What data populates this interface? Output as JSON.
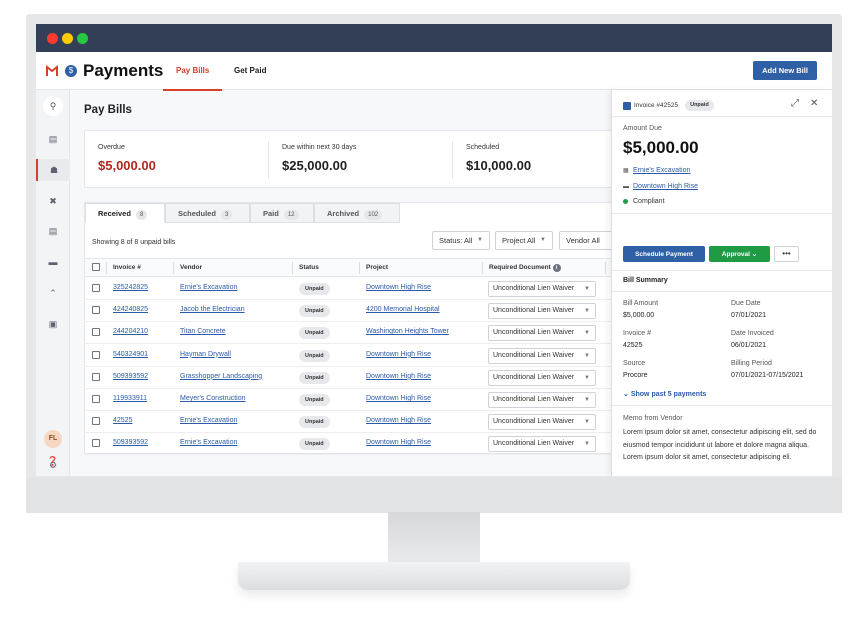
{
  "header": {
    "title": "Payments",
    "tabs": [
      "Pay Bills",
      "Get Paid"
    ],
    "add_button": "Add New Bill"
  },
  "sidebar": {
    "avatar_initials": "FL",
    "icons": [
      "search-icon",
      "dashboard-icon",
      "bank-icon",
      "tools-icon",
      "document-icon",
      "folder-icon",
      "chevron-up-icon",
      "inbox-icon",
      "gear-icon",
      "help-icon"
    ]
  },
  "page": {
    "title": "Pay Bills"
  },
  "summary": [
    {
      "label": "Overdue",
      "value": "$5,000.00"
    },
    {
      "label": "Due within next 30 days",
      "value": "$25,000.00"
    },
    {
      "label": "Scheduled",
      "value": "$10,000.00"
    }
  ],
  "tabs": [
    {
      "label": "Received",
      "count": "8"
    },
    {
      "label": "Scheduled",
      "count": "3"
    },
    {
      "label": "Paid",
      "count": "12"
    },
    {
      "label": "Archived",
      "count": "102"
    }
  ],
  "showing": "Showing 8 of 8 unpaid bills",
  "filters": [
    "Status: All",
    "Project All",
    "Vendor All"
  ],
  "columns": [
    "Invoice #",
    "Vendor",
    "Status",
    "Project",
    "Required Document"
  ],
  "rows": [
    {
      "invoice": "325242825",
      "vendor": "Ernie's Excavation",
      "status": "Unpaid",
      "project": "Downtown High Rise",
      "doc": "Unconditional Lien Waiver"
    },
    {
      "invoice": "424240825",
      "vendor": "Jacob the Electrician",
      "status": "Unpaid",
      "project": "4200 Memorial Hospital",
      "doc": "Unconditional Lien Waiver"
    },
    {
      "invoice": "244204210",
      "vendor": "Titan Concrete",
      "status": "Unpaid",
      "project": "Washington Heights Tower",
      "doc": "Unconditional Lien Waiver"
    },
    {
      "invoice": "540324901",
      "vendor": "Hayman Drywall",
      "status": "Unpaid",
      "project": "Downtown High Rise",
      "doc": "Unconditional Lien Waiver"
    },
    {
      "invoice": "509393592",
      "vendor": "Grasshopper Landscaping",
      "status": "Unpaid",
      "project": "Downtown High Rise",
      "doc": "Unconditional Lien Waiver"
    },
    {
      "invoice": "119933911",
      "vendor": "Meyer's Construction",
      "status": "Unpaid",
      "project": "Downtown High Rise",
      "doc": "Unconditional Lien Waiver"
    },
    {
      "invoice": "42525",
      "vendor": "Ernie's Excavation",
      "status": "Unpaid",
      "project": "Downtown High Rise",
      "doc": "Unconditional Lien Waiver"
    },
    {
      "invoice": "509393592",
      "vendor": "Ernie's Excavation",
      "status": "Unpaid",
      "project": "Downtown High Rise",
      "doc": "Unconditional Lien Waiver"
    }
  ],
  "panel": {
    "invoice_label": "Invoice #42525",
    "status": "Unpaid",
    "amount_label": "Amount Due",
    "amount": "$5,000.00",
    "vendor": "Ernie's Excavation",
    "project": "Downtown High Rise",
    "compliance": "Compliant",
    "schedule_button": "Schedule Payment",
    "approval_button": "Approval",
    "more_button": "•••",
    "summary_title": "Bill Summary",
    "fields": [
      {
        "label": "Bill Amount",
        "value": "$5,000.00"
      },
      {
        "label": "Due Date",
        "value": "07/01/2021"
      },
      {
        "label": "Invoice #",
        "value": "42525"
      },
      {
        "label": "Date Invoiced",
        "value": "06/01/2021"
      },
      {
        "label": "Source",
        "value": "Procore"
      },
      {
        "label": "Billing Period",
        "value": "07/01/2021-07/15/2021"
      }
    ],
    "show_past": "Show past 5 payments",
    "memo_label": "Memo from Vendor",
    "memo": "Lorem ipsum dolor sit amet, consectetur adipiscing elit, sed do eiusmod tempor incididunt ut labore et dolore magna aliqua. Lorem ipsum dolor sit amet, consectetur adipiscing eli."
  }
}
